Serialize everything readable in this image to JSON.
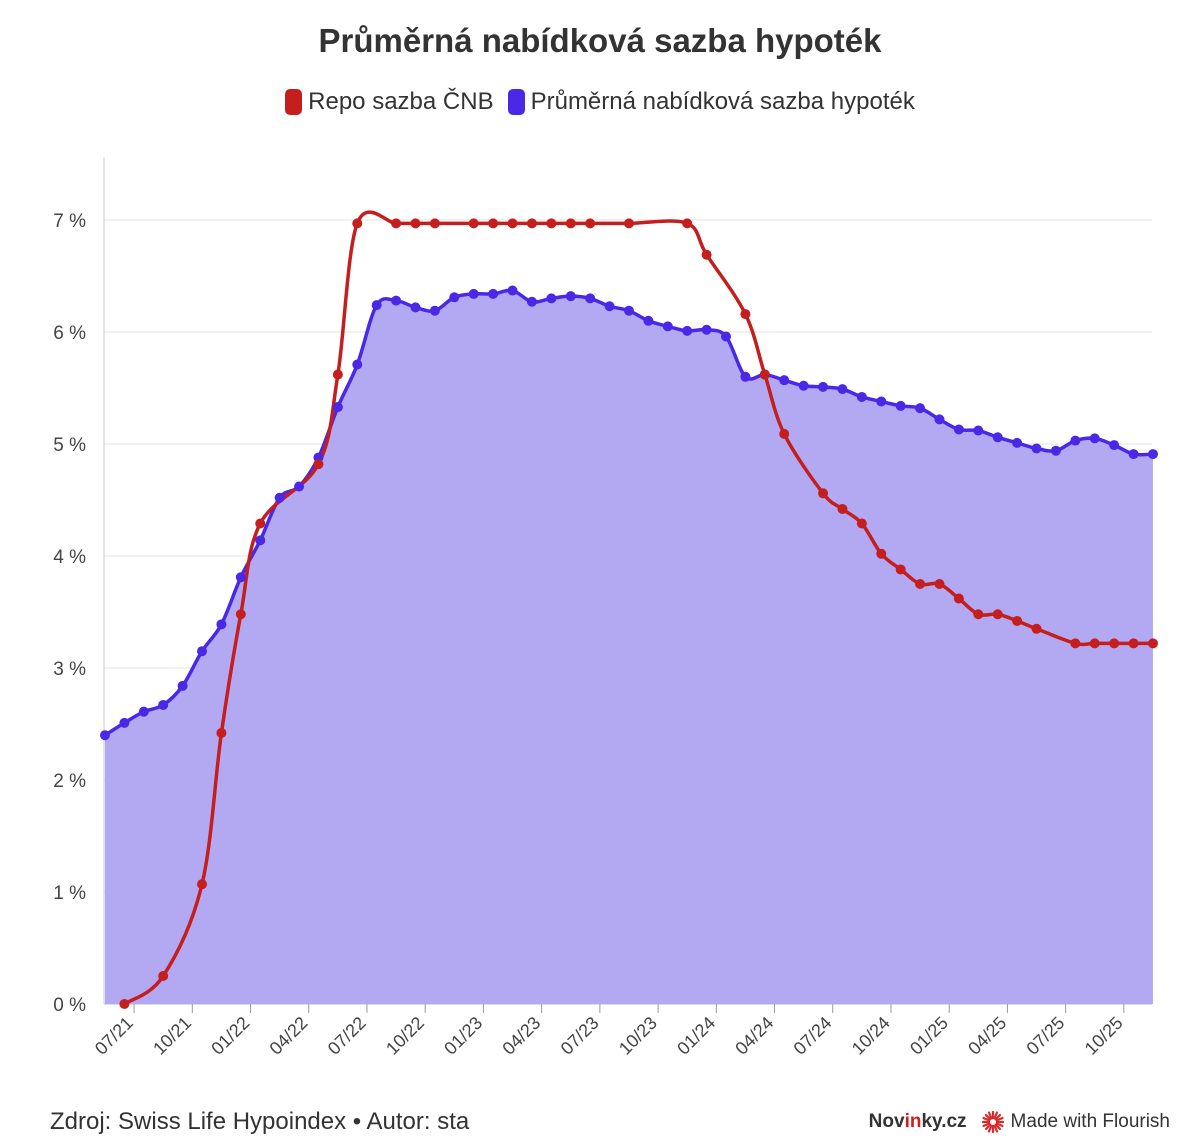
{
  "chart_data": {
    "type": "line",
    "title": "Průměrná nabídková sazba hypoték",
    "xlabel": "",
    "ylabel": "",
    "ylim": [
      0,
      7.5
    ],
    "y_ticks": [
      0,
      1,
      2,
      3,
      4,
      5,
      6,
      7
    ],
    "y_tick_labels": [
      "0 %",
      "1 %",
      "2 %",
      "3 %",
      "4 %",
      "5 %",
      "6 %",
      "7 %"
    ],
    "x_ticks": [
      1.5,
      4.5,
      7.5,
      10.5,
      13.5,
      16.5,
      19.5,
      22.5,
      25.5,
      28.5,
      31.5,
      34.5,
      37.5,
      40.5,
      43.5,
      46.5,
      49.5,
      52.5
    ],
    "x_tick_labels": [
      "07/21",
      "10/21",
      "01/22",
      "04/22",
      "07/22",
      "10/22",
      "01/23",
      "04/23",
      "07/23",
      "10/23",
      "01/24",
      "04/24",
      "07/24",
      "10/24",
      "01/25",
      "04/25",
      "07/25",
      "10/25"
    ],
    "x_range": [
      -0.05,
      53.95
    ],
    "series": [
      {
        "name": "Repo sazba ČNB",
        "color": "#c41e1e",
        "fill": false,
        "x": [
          1,
          3,
          5,
          6,
          7,
          8,
          11,
          12,
          13,
          15,
          16,
          17,
          19,
          20,
          21,
          22,
          23,
          24,
          25,
          27,
          30,
          31,
          33,
          34,
          35,
          37,
          38,
          39,
          40,
          41,
          42,
          43,
          44,
          45,
          46,
          47,
          48,
          50,
          51,
          52,
          53,
          54
        ],
        "values": [
          0,
          0.25,
          1.07,
          2.42,
          3.48,
          4.29,
          4.82,
          5.62,
          6.97,
          6.97,
          6.97,
          6.97,
          6.97,
          6.97,
          6.97,
          6.97,
          6.97,
          6.97,
          6.97,
          6.97,
          6.97,
          6.69,
          6.16,
          5.62,
          5.09,
          4.56,
          4.42,
          4.29,
          4.02,
          3.88,
          3.75,
          3.75,
          3.62,
          3.48,
          3.48,
          3.42,
          3.35,
          3.22,
          3.22,
          3.22,
          3.22,
          3.22
        ]
      },
      {
        "name": "Průměrná nabídková sazba hypoték",
        "color": "#4a28e6",
        "fill": true,
        "fill_color": "#b3a9f3",
        "x": [
          0,
          1,
          2,
          3,
          4,
          5,
          6,
          7,
          8,
          9,
          10,
          11,
          12,
          13,
          14,
          15,
          16,
          17,
          18,
          19,
          20,
          21,
          22,
          23,
          24,
          25,
          26,
          27,
          28,
          29,
          30,
          31,
          32,
          33,
          34,
          35,
          36,
          37,
          38,
          39,
          40,
          41,
          42,
          43,
          44,
          45,
          46,
          47,
          48,
          49,
          50,
          51,
          52,
          53,
          54
        ],
        "values": [
          2.4,
          2.51,
          2.61,
          2.67,
          2.84,
          3.15,
          3.39,
          3.81,
          4.14,
          4.52,
          4.62,
          4.88,
          5.33,
          5.71,
          6.24,
          6.28,
          6.22,
          6.19,
          6.31,
          6.34,
          6.34,
          6.37,
          6.27,
          6.3,
          6.32,
          6.3,
          6.23,
          6.19,
          6.1,
          6.05,
          6.01,
          6.02,
          5.96,
          5.6,
          5.62,
          5.57,
          5.52,
          5.51,
          5.49,
          5.42,
          5.38,
          5.34,
          5.32,
          5.22,
          5.13,
          5.12,
          5.06,
          5.01,
          4.96,
          4.94,
          5.03,
          5.05,
          4.99,
          4.91,
          4.91
        ]
      }
    ],
    "legend": [
      "Repo sazba ČNB",
      "Průměrná nabídková sazba hypoték"
    ],
    "legend_position": "top-center"
  },
  "footer": {
    "source": "Zdroj: Swiss Life Hypoindex • Autor: sta",
    "brand_prefix": "Nov",
    "brand_accent": "in",
    "brand_suffix": "ky.cz",
    "flourish": "Made with Flourish"
  }
}
